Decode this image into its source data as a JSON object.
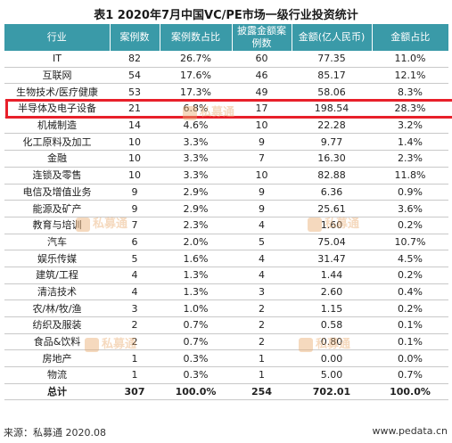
{
  "title": "表1  2020年7月中国VC/PE市场一级行业投资统计",
  "columns": [
    "行业",
    "案例数",
    "案例数占比",
    "披露金额案例数",
    "金额(亿人民币)",
    "金额占比"
  ],
  "rows": [
    [
      "IT",
      "82",
      "26.7%",
      "60",
      "77.35",
      "11.0%"
    ],
    [
      "互联网",
      "54",
      "17.6%",
      "46",
      "85.17",
      "12.1%"
    ],
    [
      "生物技术/医疗健康",
      "53",
      "17.3%",
      "49",
      "58.06",
      "8.3%"
    ],
    [
      "半导体及电子设备",
      "21",
      "6.8%",
      "17",
      "198.54",
      "28.3%"
    ],
    [
      "机械制造",
      "14",
      "4.6%",
      "10",
      "22.28",
      "3.2%"
    ],
    [
      "化工原料及加工",
      "10",
      "3.3%",
      "9",
      "9.77",
      "1.4%"
    ],
    [
      "金融",
      "10",
      "3.3%",
      "7",
      "16.30",
      "2.3%"
    ],
    [
      "连锁及零售",
      "10",
      "3.3%",
      "10",
      "82.88",
      "11.8%"
    ],
    [
      "电信及增值业务",
      "9",
      "2.9%",
      "9",
      "6.36",
      "0.9%"
    ],
    [
      "能源及矿产",
      "9",
      "2.9%",
      "9",
      "25.61",
      "3.6%"
    ],
    [
      "教育与培训",
      "7",
      "2.3%",
      "4",
      "1.60",
      "0.2%"
    ],
    [
      "汽车",
      "6",
      "2.0%",
      "5",
      "75.04",
      "10.7%"
    ],
    [
      "娱乐传媒",
      "5",
      "1.6%",
      "4",
      "31.47",
      "4.5%"
    ],
    [
      "建筑/工程",
      "4",
      "1.3%",
      "4",
      "1.44",
      "0.2%"
    ],
    [
      "清洁技术",
      "4",
      "1.3%",
      "3",
      "2.60",
      "0.4%"
    ],
    [
      "农/林/牧/渔",
      "3",
      "1.0%",
      "2",
      "1.15",
      "0.2%"
    ],
    [
      "纺织及服装",
      "2",
      "0.7%",
      "2",
      "0.58",
      "0.1%"
    ],
    [
      "食品&饮料",
      "2",
      "0.7%",
      "2",
      "0.80",
      "0.1%"
    ],
    [
      "房地产",
      "1",
      "0.3%",
      "1",
      "0.00",
      "0.0%"
    ],
    [
      "物流",
      "1",
      "0.3%",
      "1",
      "5.00",
      "0.7%"
    ]
  ],
  "total_row": [
    "总计",
    "307",
    "100.0%",
    "254",
    "702.01",
    "100.0%"
  ],
  "highlighted_row": "半导体及电子设备",
  "colors": {
    "header_bg": "#3a9aa8",
    "highlight": "#e8202a"
  },
  "watermark": "私募通",
  "source": "来源：私募通 2020.08",
  "site": "www.pedata.cn"
}
